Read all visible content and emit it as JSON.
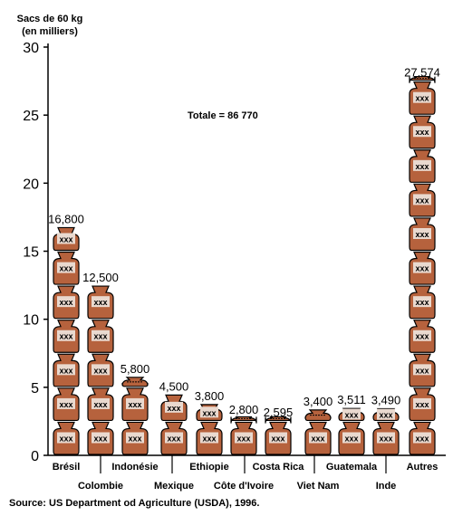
{
  "chart_data": {
    "type": "bar",
    "ylabel_line1": "Sacs de 60 kg",
    "ylabel_line2": "(en milliers)",
    "ylim": [
      0,
      30
    ],
    "yticks": [
      0,
      5,
      10,
      15,
      20,
      25,
      30
    ],
    "annotation": "Totale = 86 770",
    "sack_label": "xxx",
    "sack_color": "#b6623d",
    "categories": [
      "Brésil",
      "Colombie",
      "Indonésie",
      "Mexique",
      "Ethiopie",
      "Côte d'Ivoire",
      "Costa Rica",
      "Viet Nam",
      "Guatemala",
      "Inde",
      "Autres"
    ],
    "values": [
      16800,
      12500,
      5800,
      4500,
      3800,
      2800,
      2595,
      3400,
      3511,
      3490,
      27574
    ],
    "value_labels": [
      "16,800",
      "12,500",
      "5,800",
      "4,500",
      "3,800",
      "2,800",
      "2,595",
      "3,400",
      "3,511",
      "3,490",
      "27,574"
    ]
  },
  "source": "Source: US Department od Agriculture (USDA), 1996."
}
